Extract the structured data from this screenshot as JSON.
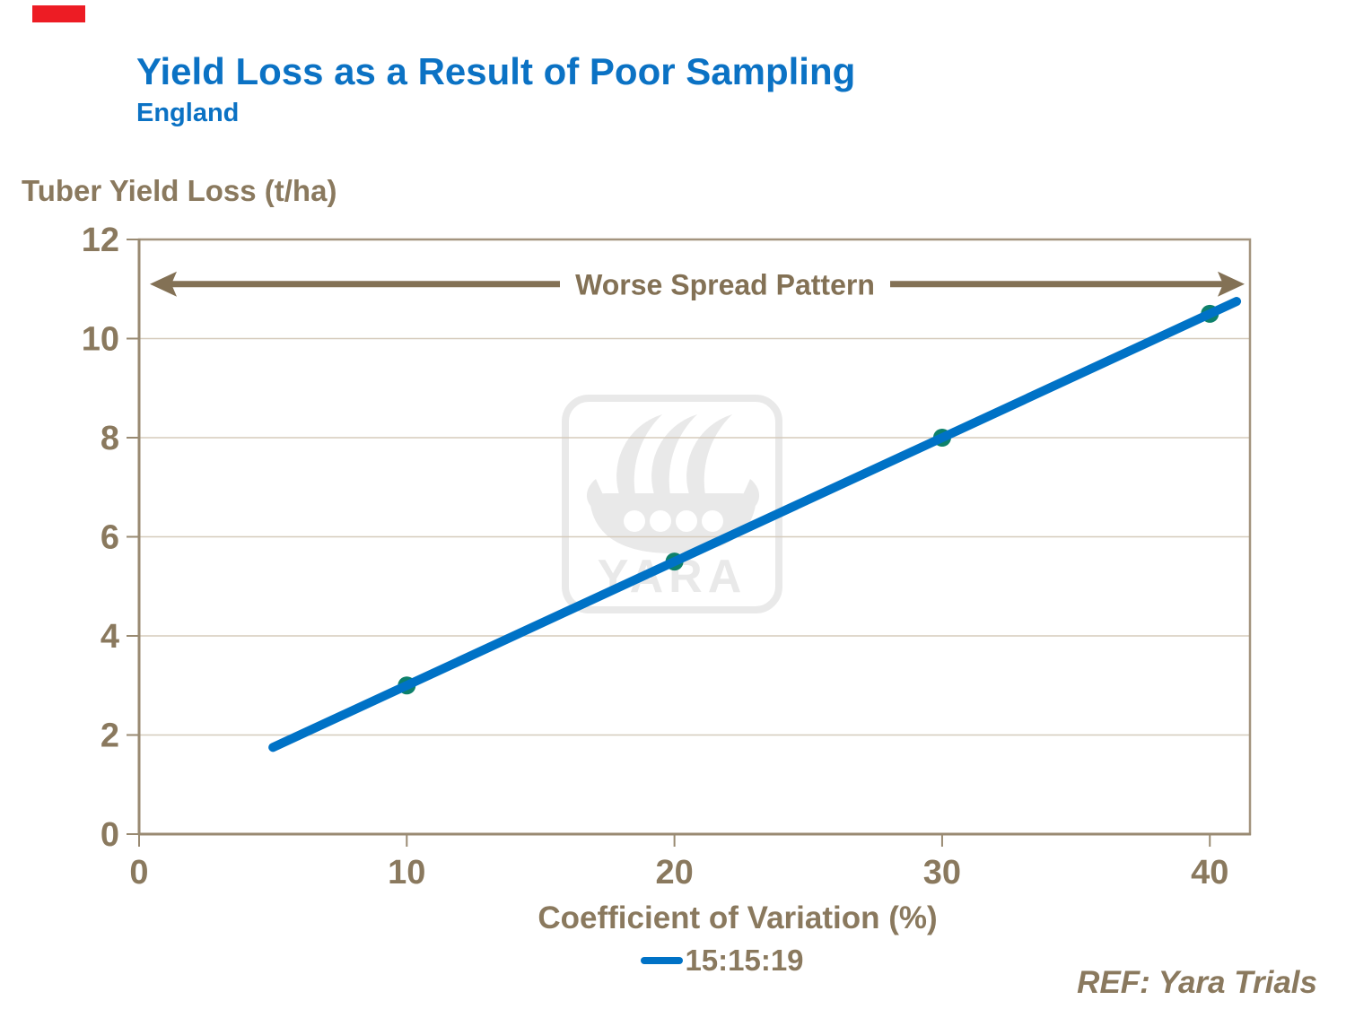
{
  "window": {
    "red_marker_color": "#ed1c24"
  },
  "header": {
    "title": "Yield Loss as a Result of Poor Sampling",
    "subtitle": "England"
  },
  "watermark": {
    "text": "YARA"
  },
  "footer": {
    "ref": "REF: Yara Trials"
  },
  "chart_data": {
    "type": "line",
    "title": "Yield Loss as a Result of Poor Sampling",
    "subtitle": "England",
    "xlabel": "Coefficient of Variation (%)",
    "ylabel": "Tuber Yield Loss (t/ha)",
    "xlim": [
      0,
      41.5
    ],
    "ylim": [
      0,
      12
    ],
    "x_ticks": [
      0,
      10,
      20,
      30,
      40
    ],
    "y_ticks": [
      0,
      2,
      4,
      6,
      8,
      10,
      12
    ],
    "grid": "horizontal",
    "legend_position": "bottom-center",
    "series": [
      {
        "name": "15:15:19",
        "x": [
          10,
          20,
          30,
          40
        ],
        "y": [
          3,
          5.5,
          8,
          10.5
        ],
        "line_color": "#0072c6",
        "marker_color": "#0e816b",
        "trendline": {
          "x": [
            5,
            41
          ],
          "y": [
            1.75,
            10.75
          ]
        }
      }
    ],
    "annotation": {
      "text": "Worse Spread Pattern",
      "y_value": 11.1,
      "arrow": "double-headed"
    }
  },
  "colors": {
    "title_blue": "#0b72c4",
    "axis_text_brown": "#8a795e",
    "annotation_brown": "#837155",
    "axis_line": "#a3947e",
    "axis_line_dark": "#998a72",
    "gridline": "#d5cbbc",
    "watermark_gray": "#e9e9e9"
  }
}
